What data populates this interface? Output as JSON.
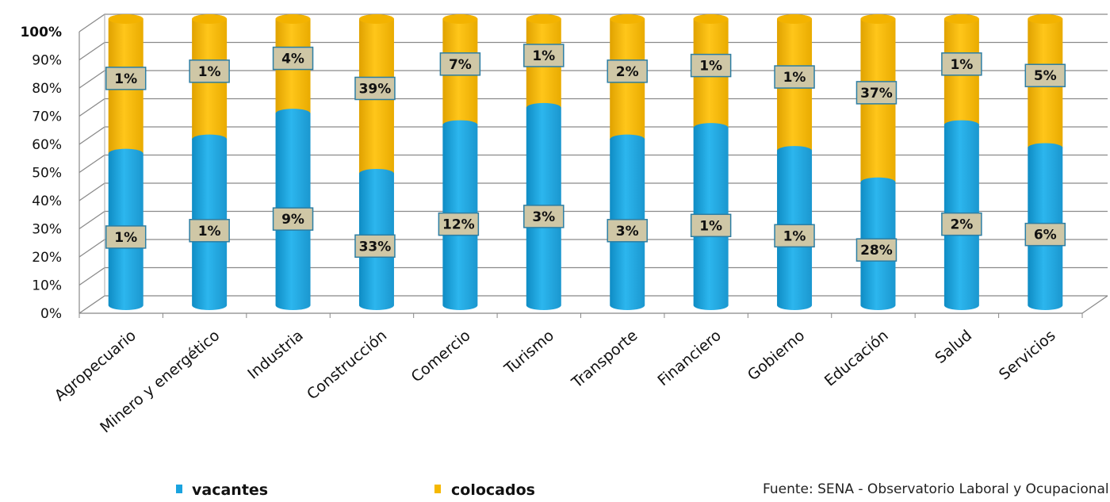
{
  "chart_data": {
    "type": "bar",
    "stacked": true,
    "percent_stacked": true,
    "style": "3d-cylinder",
    "categories": [
      "Agropecuario",
      "Minero y energético",
      "Industria",
      "Construcción",
      "Comercio",
      "Turismo",
      "Transporte",
      "Financiero",
      "Gobierno",
      "Educación",
      "Salud",
      "Servicios"
    ],
    "series": [
      {
        "name": "vacantes",
        "color": "#1aa3df",
        "share_percent": [
          53,
          58,
          67,
          46,
          63,
          69,
          58,
          62,
          54,
          43,
          63,
          55
        ],
        "labels": [
          "1%",
          "1%",
          "9%",
          "33%",
          "12%",
          "3%",
          "3%",
          "1%",
          "1%",
          "28%",
          "2%",
          "6%"
        ]
      },
      {
        "name": "colocados",
        "color": "#f5b800",
        "share_percent": [
          47,
          42,
          33,
          54,
          37,
          31,
          42,
          38,
          46,
          57,
          37,
          45
        ],
        "labels": [
          "1%",
          "1%",
          "4%",
          "39%",
          "7%",
          "1%",
          "2%",
          "1%",
          "1%",
          "37%",
          "1%",
          "5%"
        ]
      }
    ],
    "y_ticks": [
      "0%",
      "10%",
      "20%",
      "30%",
      "40%",
      "50%",
      "60%",
      "70%",
      "80%",
      "90%",
      "100%"
    ],
    "ylim": [
      0,
      100
    ],
    "grid": true,
    "legend_position": "bottom"
  },
  "legend": {
    "vacantes": "vacantes",
    "colocados": "colocados"
  },
  "source": "Fuente: SENA - Observatorio Laboral y Ocupacional"
}
